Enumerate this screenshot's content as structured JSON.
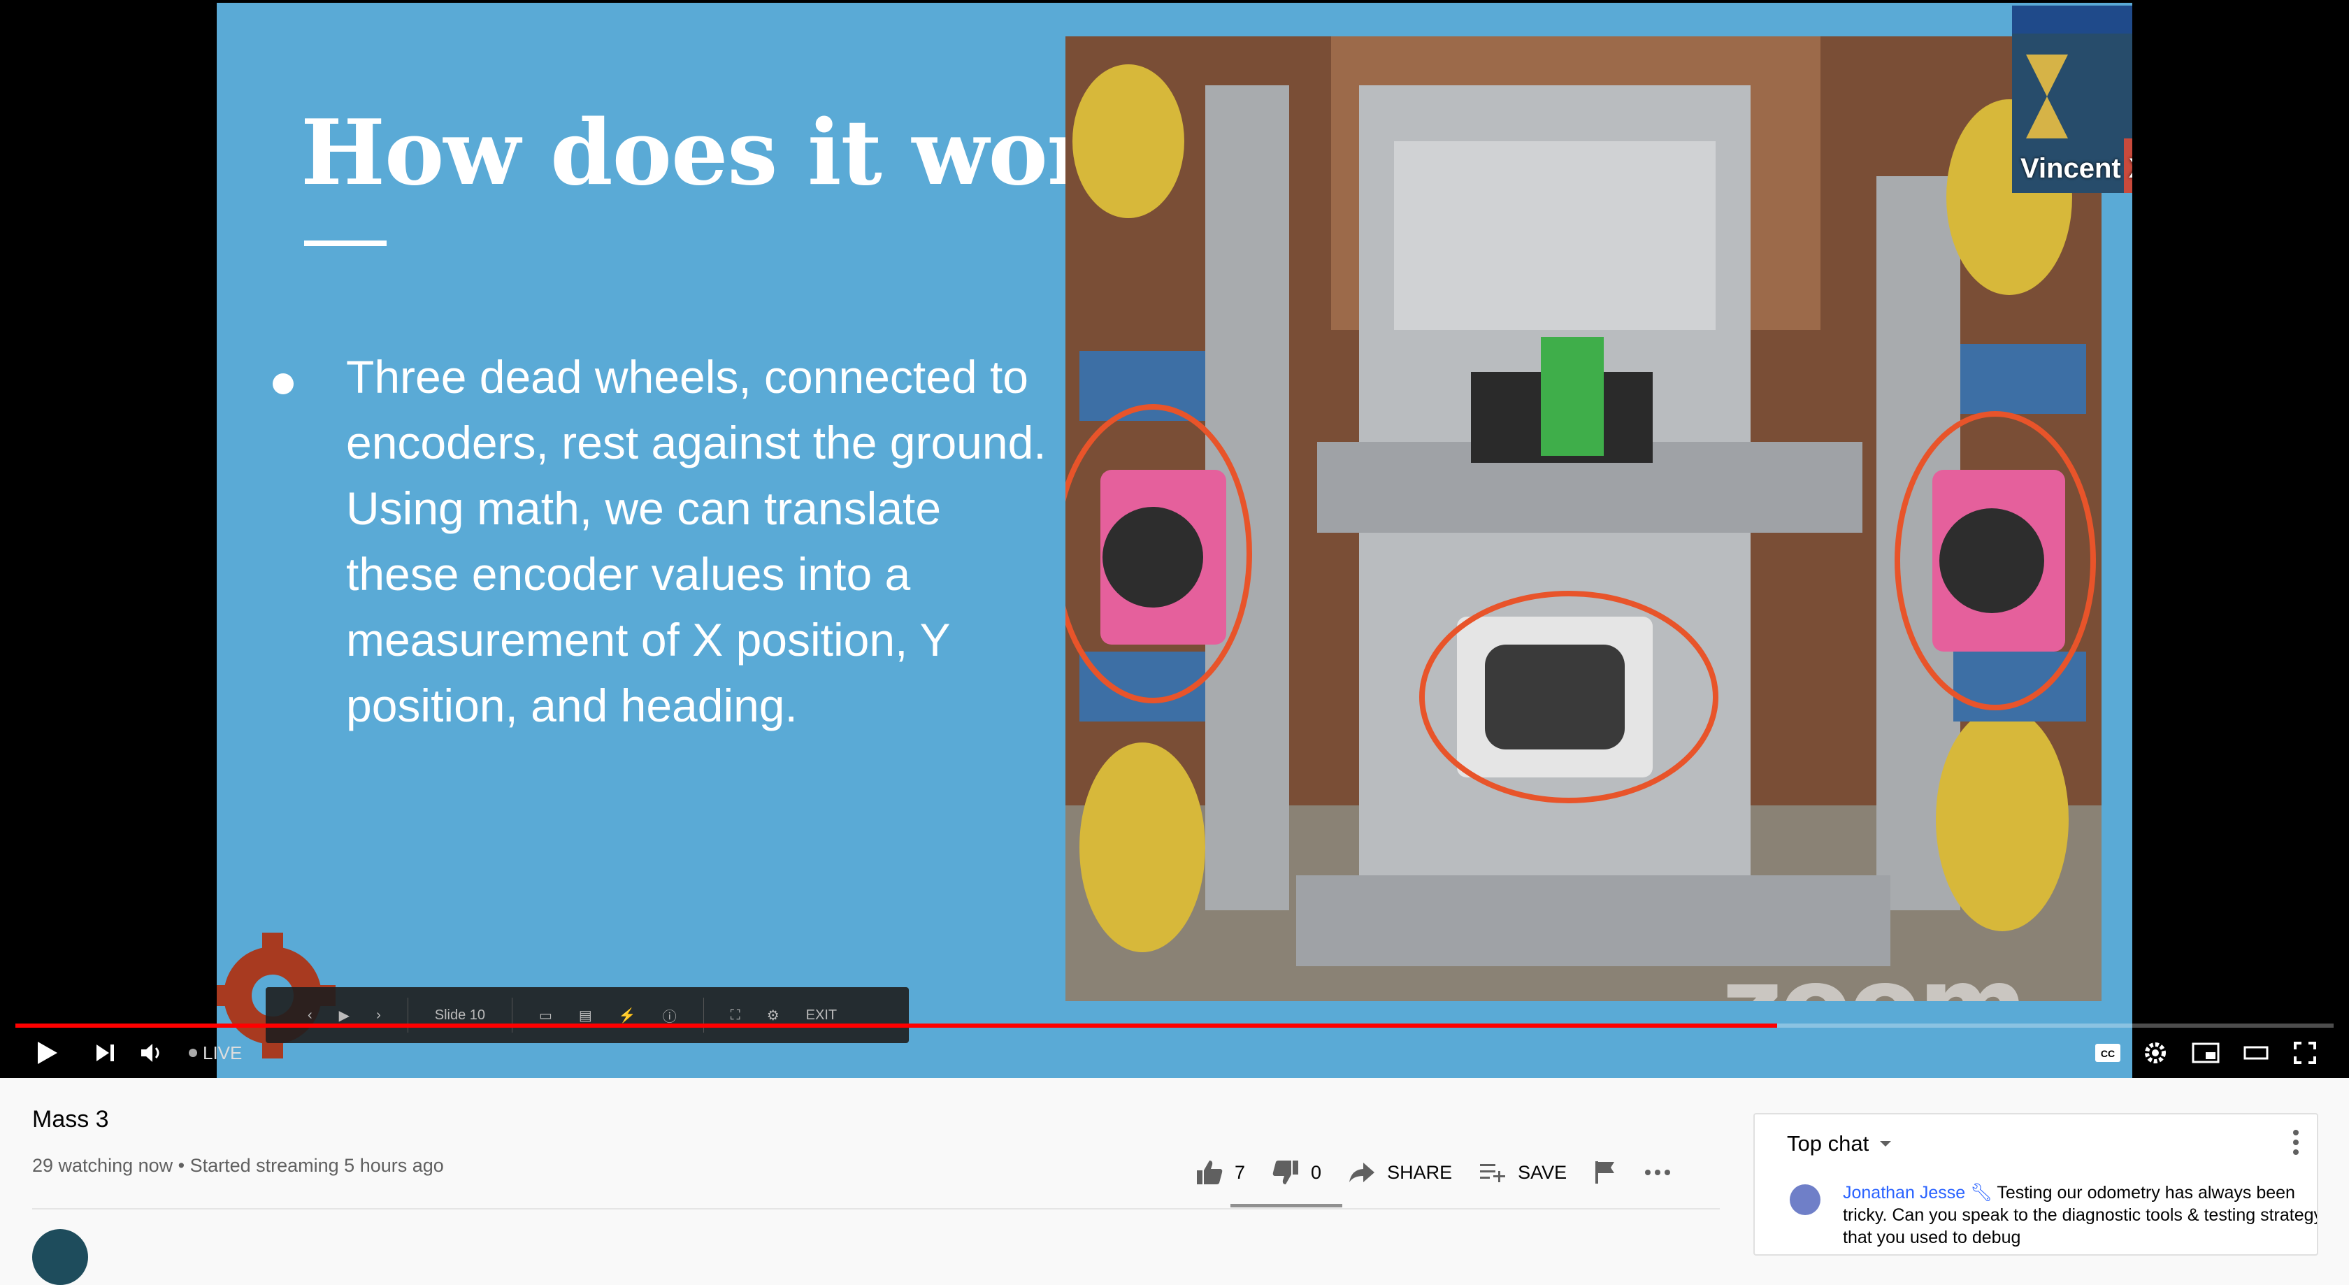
{
  "slide": {
    "title": "How does it work?",
    "bullet": "Three dead wheels, connected to encoders, rest against the ground. Using math, we can translate these encoder values into a measurement of X position, Y position, and heading.",
    "watermark": "zoom",
    "participant_name": "Vincent Xiao",
    "slide_controls": {
      "slide_label": "Slide 10",
      "exit_label": "EXIT"
    }
  },
  "player": {
    "live_label": "LIVE",
    "progress_fraction": 0.76
  },
  "video": {
    "title": "Mass 3",
    "meta": "29 watching now • Started streaming 5 hours ago",
    "likes": "7",
    "dislikes": "0",
    "share_label": "SHARE",
    "save_label": "SAVE"
  },
  "chat": {
    "header": "Top chat",
    "message": {
      "author": "Jonathan Jesse",
      "text": "Testing our odometry has always been tricky. Can you speak to the diagnostic tools & testing strategy that you used to debug"
    }
  },
  "colors": {
    "slide_bg": "#5aaad6",
    "progress": "#ff0000",
    "highlight_ring": "#e8542a",
    "mount_pink": "#e5609c"
  }
}
